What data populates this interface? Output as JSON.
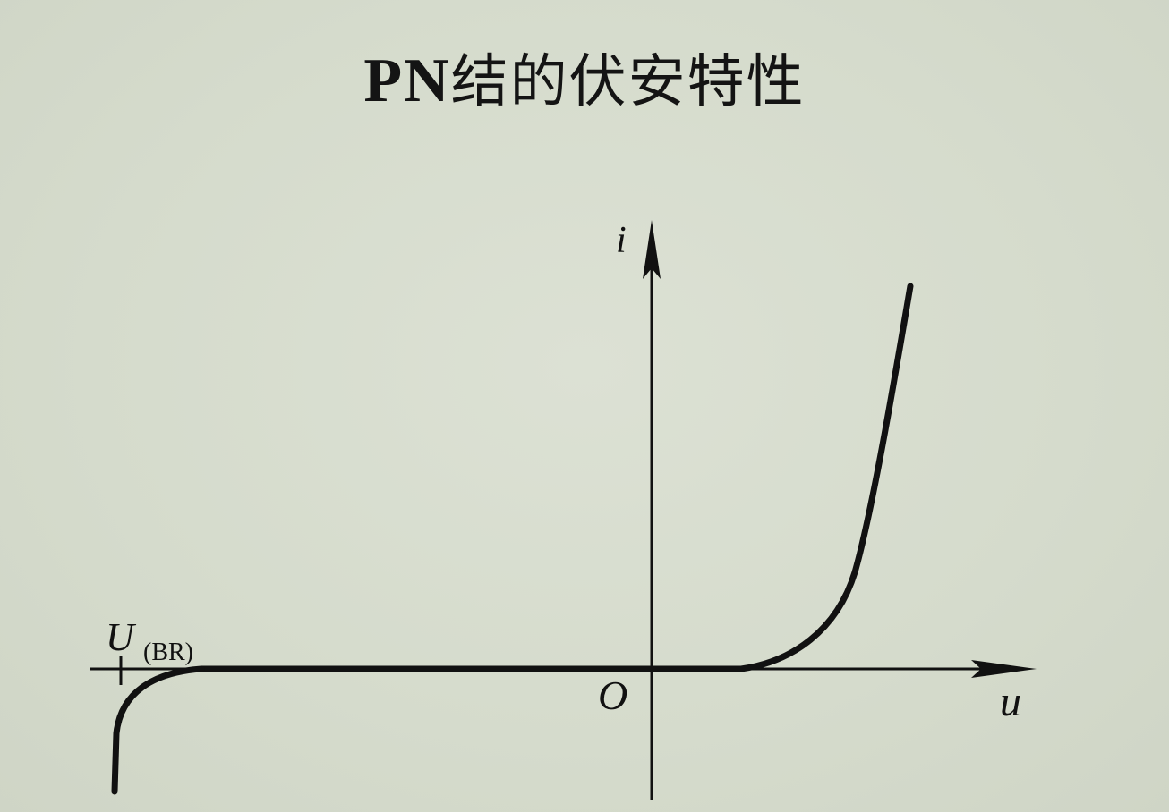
{
  "slide": {
    "title_latin": "PN",
    "title_cjk": "结的伏安特性"
  },
  "diagram": {
    "y_axis_label": "i",
    "x_axis_label": "u",
    "origin_label": "O",
    "breakdown_label_main": "U",
    "breakdown_label_sub": "(BR)"
  },
  "colors": {
    "background": "#d6dccd",
    "curve": "#111111",
    "axis": "#111111"
  }
}
